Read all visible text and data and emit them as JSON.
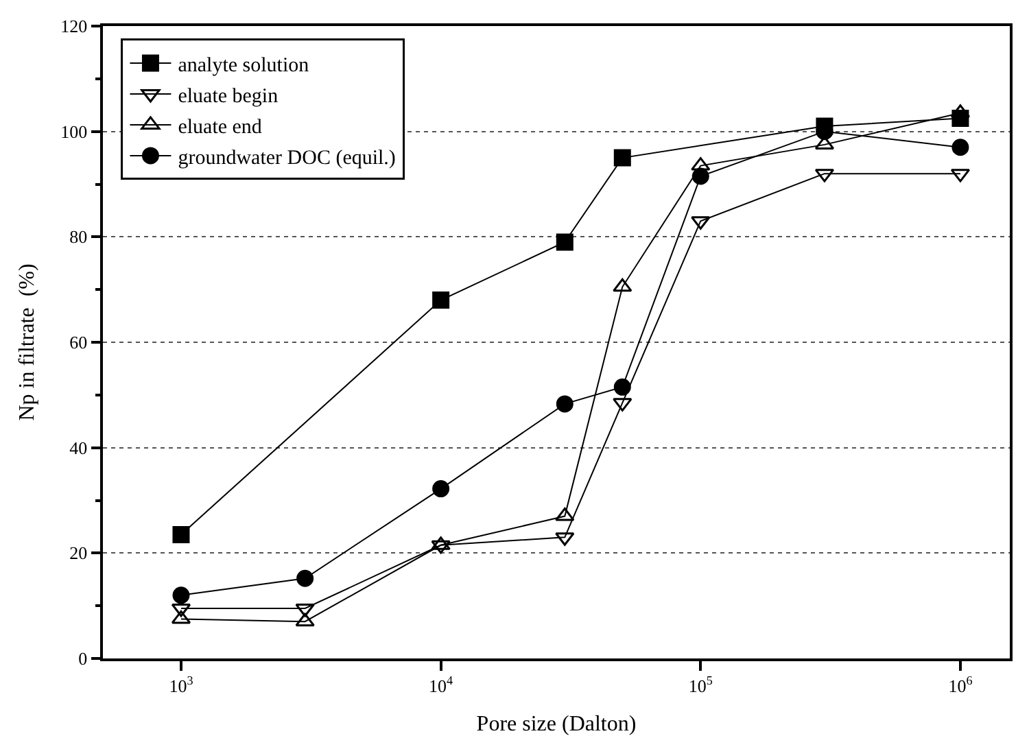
{
  "chart_data": {
    "type": "line",
    "xlabel": "Pore size (Dalton)",
    "ylabel": "Np in filtrate  (%)",
    "log": "x",
    "xlim": [
      500,
      1550000
    ],
    "ylim": [
      0,
      120
    ],
    "xticks": [
      {
        "value": 1000,
        "label": "10$^{3}$"
      },
      {
        "value": 10000,
        "label": "10$^{4}$"
      },
      {
        "value": 100000,
        "label": "10$^{5}$"
      },
      {
        "value": 1000000,
        "label": "10$^{6}$"
      }
    ],
    "yticks": [
      0,
      20,
      40,
      60,
      80,
      100,
      120
    ],
    "grid": "y",
    "legend": "top left",
    "line_style": "solid",
    "series": [
      {
        "name": "analyte solution",
        "color": "#000000",
        "marker": "square",
        "x": [
          1000,
          10000,
          30000,
          50000,
          300000,
          1000000
        ],
        "values": [
          23.5,
          68,
          79,
          95,
          101,
          102.5
        ]
      },
      {
        "name": "eluate begin",
        "color": "#000000",
        "marker": "triangle-down",
        "x": [
          1000,
          3000,
          10000,
          30000,
          50000,
          100000,
          300000,
          1000000
        ],
        "values": [
          9.5,
          9.5,
          21.5,
          23,
          48.5,
          83,
          92,
          92
        ]
      },
      {
        "name": "eluate end",
        "color": "#000000",
        "marker": "triangle",
        "x": [
          1000,
          3000,
          10000,
          30000,
          50000,
          100000,
          300000,
          1000000
        ],
        "values": [
          7.5,
          7,
          21.5,
          27,
          70.5,
          93.5,
          97.5,
          103.5
        ]
      },
      {
        "name": "groundwater DOC (equil.)",
        "color": "#000000",
        "marker": "circle",
        "x": [
          1000,
          3000,
          10000,
          30000,
          50000,
          100000,
          300000,
          1000000
        ],
        "values": [
          12,
          15.2,
          32.2,
          48.3,
          51.5,
          91.5,
          100,
          97
        ]
      }
    ]
  }
}
